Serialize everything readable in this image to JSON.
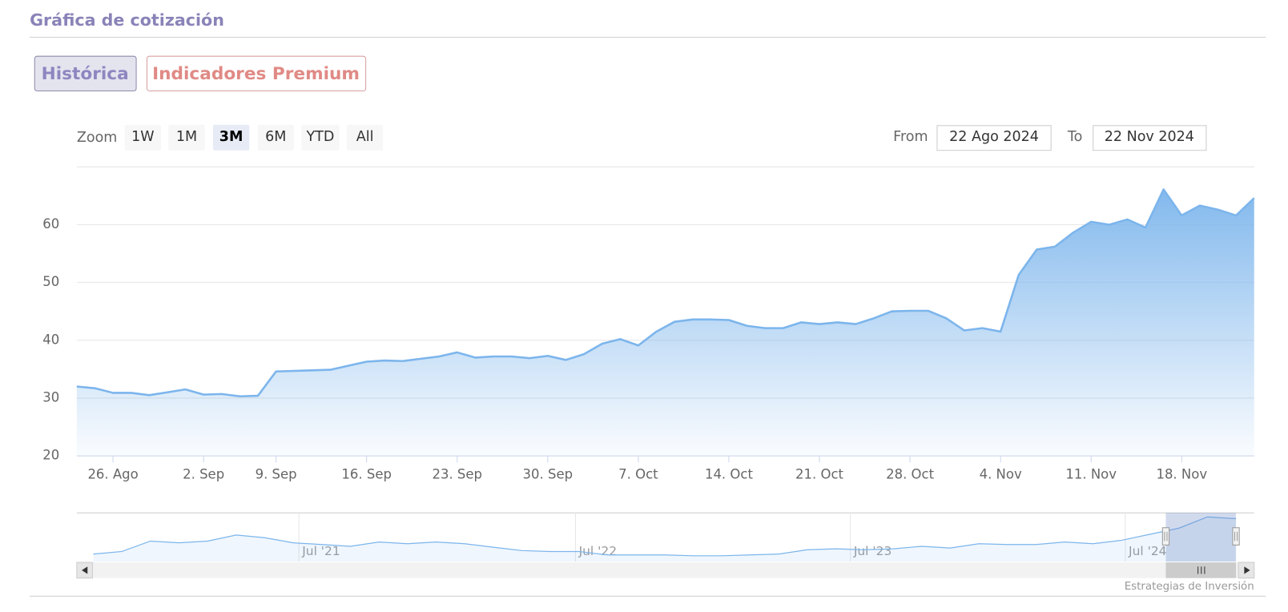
{
  "header": {
    "title": "Gráfica de cotización"
  },
  "tabs": [
    "Histórica",
    "Indicadores Premium"
  ],
  "range_selector": {
    "zoom_label": "Zoom",
    "buttons": [
      "1W",
      "1M",
      "3M",
      "6M",
      "YTD",
      "All"
    ],
    "selected": 2,
    "from_label": "From",
    "from_value": "22 Ago 2024",
    "to_label": "To",
    "to_value": "22 Nov 2024"
  },
  "chart_data": {
    "type": "area",
    "categories": [
      null,
      null,
      "26. Ago",
      null,
      null,
      null,
      null,
      "2. Sep",
      null,
      null,
      null,
      "9. Sep",
      null,
      null,
      null,
      null,
      "16. Sep",
      null,
      null,
      null,
      null,
      "23. Sep",
      null,
      null,
      null,
      null,
      "30. Sep",
      null,
      null,
      null,
      null,
      "7. Oct",
      null,
      null,
      null,
      null,
      "14. Oct",
      null,
      null,
      null,
      null,
      "21. Oct",
      null,
      null,
      null,
      null,
      "28. Oct",
      null,
      null,
      null,
      null,
      "4. Nov",
      null,
      null,
      null,
      null,
      "11. Nov",
      null,
      null,
      null,
      null,
      "18. Nov",
      null,
      null,
      null,
      null
    ],
    "values": [
      32.0,
      31.7,
      30.9,
      30.9,
      30.5,
      31.0,
      31.5,
      30.6,
      30.7,
      30.3,
      30.4,
      34.6,
      34.7,
      34.8,
      34.9,
      35.6,
      36.3,
      36.5,
      36.4,
      36.8,
      37.2,
      37.9,
      37.0,
      37.2,
      37.2,
      36.9,
      37.3,
      36.6,
      37.6,
      39.4,
      40.2,
      39.1,
      41.5,
      43.2,
      43.6,
      43.6,
      43.5,
      42.5,
      42.1,
      42.1,
      43.1,
      42.8,
      43.1,
      42.8,
      43.8,
      45.0,
      45.1,
      45.1,
      43.8,
      41.7,
      42.1,
      41.5,
      51.3,
      55.7,
      56.2,
      58.6,
      60.5,
      60.0,
      60.9,
      59.5,
      66.1,
      61.6,
      63.3,
      62.6,
      61.6,
      64.6
    ],
    "color": "#7cb5ec",
    "ylim": [
      20,
      70
    ],
    "yticks": [
      20,
      30,
      40,
      50,
      60
    ],
    "grid": true,
    "navigator": {
      "labels": [
        "Jul '21",
        "Jul '22",
        "Jul '23",
        "Jul '24"
      ],
      "values": [
        21,
        24,
        36,
        34,
        36,
        43,
        40,
        34,
        32,
        30,
        35,
        33,
        35,
        33,
        29,
        25,
        24,
        24,
        20,
        20,
        20,
        19,
        19,
        20,
        21,
        26,
        27,
        26,
        27,
        30,
        28,
        33,
        32,
        32,
        35,
        33,
        37,
        44,
        51,
        64,
        62
      ]
    },
    "credit": "Estrategias de Inversión"
  }
}
